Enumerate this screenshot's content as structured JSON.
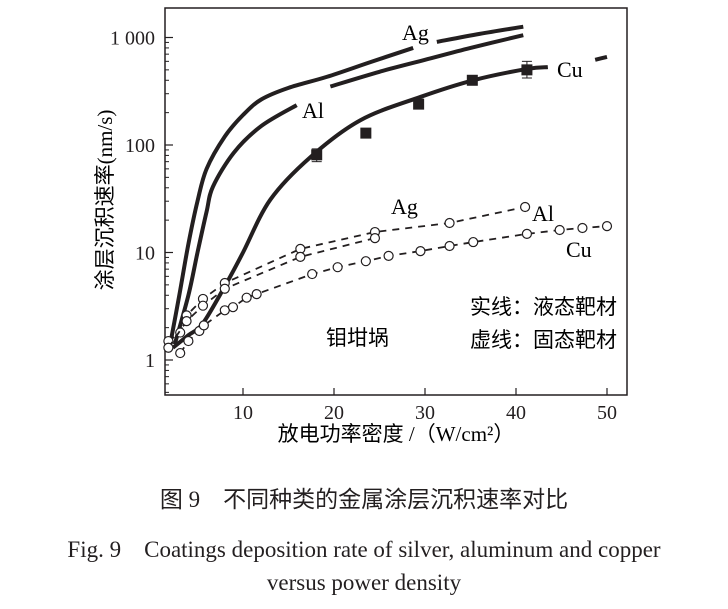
{
  "chart_data": {
    "type": "line",
    "xlabel": "放电功率密度 /（W/cm²）",
    "ylabel": "涂层沉积速率(nm/s)",
    "x_ticks": [
      "10",
      "20",
      "30",
      "40",
      "50"
    ],
    "y_ticks": [
      "1",
      "10",
      "100",
      "1 000"
    ],
    "xlim": [
      1.4,
      52
    ],
    "ylim": [
      0.48,
      1800
    ],
    "y_scale": "log",
    "grid": false,
    "color": "#231f20",
    "series": [
      {
        "name": "Ag",
        "style": "solid",
        "marker": "none",
        "segments": [
          [
            [
              2,
              1.4
            ],
            [
              3,
              4
            ],
            [
              4,
              12
            ],
            [
              5,
              30
            ],
            [
              6,
              60
            ],
            [
              8,
              120
            ],
            [
              10,
              190
            ],
            [
              12,
              265
            ],
            [
              15,
              340
            ],
            [
              19.2,
              430
            ],
            [
              24,
              590
            ],
            [
              28.7,
              800
            ]
          ],
          [
            [
              31.3,
              910
            ],
            [
              36,
              1080
            ],
            [
              40.8,
              1260
            ]
          ]
        ]
      },
      {
        "name": "Al",
        "style": "solid",
        "marker": "none",
        "segments": [
          [
            [
              2.5,
              1.4
            ],
            [
              4,
              4
            ],
            [
              5,
              10
            ],
            [
              6,
              24
            ],
            [
              6.7,
              41
            ],
            [
              9,
              85
            ],
            [
              12,
              150
            ],
            [
              15.9,
              235
            ]
          ],
          [
            [
              19.6,
              350
            ],
            [
              25,
              480
            ],
            [
              30,
              620
            ],
            [
              35,
              800
            ],
            [
              40.8,
              1050
            ]
          ]
        ]
      },
      {
        "name": "Cu",
        "style": "solid",
        "marker": "none",
        "segments": [
          [
            [
              2.3,
              1.3
            ],
            [
              4,
              1.7
            ],
            [
              5.6,
              2.2
            ],
            [
              8.2,
              5.2
            ],
            [
              10,
              10
            ],
            [
              13,
              31
            ],
            [
              17.4,
              77
            ],
            [
              22.9,
              170
            ],
            [
              29.5,
              280
            ],
            [
              35.3,
              400
            ],
            [
              41.2,
              510
            ],
            [
              43.5,
              530
            ]
          ],
          [
            [
              48.7,
              620
            ],
            [
              50,
              660
            ]
          ]
        ]
      },
      {
        "name": "Cu",
        "style": "solid",
        "marker": "square",
        "points": [
          [
            18.1,
            81
          ],
          [
            23.5,
            129
          ],
          [
            29.3,
            240
          ],
          [
            35.2,
            400
          ],
          [
            41.2,
            500
          ]
        ],
        "error_bars": [
          [
            18.1,
            70,
            92
          ],
          [
            41.2,
            420,
            600
          ]
        ]
      },
      {
        "name": "Ag",
        "style": "dashed",
        "marker": "circle",
        "points": [
          [
            1.8,
            1.5
          ],
          [
            3.1,
            1.8
          ],
          [
            3.8,
            2.6
          ],
          [
            5.6,
            3.7
          ],
          [
            8,
            5.2
          ],
          [
            16.3,
            10.8
          ],
          [
            24.5,
            15.5
          ],
          [
            32.7,
            18.8
          ],
          [
            41,
            26.5
          ]
        ]
      },
      {
        "name": "Al",
        "style": "dashed",
        "marker": "circle",
        "points": [
          [
            1.8,
            1.3
          ],
          [
            3.8,
            2.3
          ],
          [
            5.6,
            3.2
          ],
          [
            8,
            4.6
          ],
          [
            16.3,
            9.1
          ],
          [
            24.5,
            13.6
          ]
        ]
      },
      {
        "name": "Cu",
        "style": "dashed",
        "marker": "circle",
        "points": [
          [
            3.1,
            1.16
          ],
          [
            4,
            1.5
          ],
          [
            5.2,
            1.86
          ],
          [
            5.7,
            2.1
          ],
          [
            8,
            2.9
          ],
          [
            8.9,
            3.1
          ],
          [
            10.4,
            3.8
          ],
          [
            11.5,
            4.1
          ],
          [
            17.6,
            6.3
          ],
          [
            20.4,
            7.3
          ],
          [
            23.5,
            8.3
          ],
          [
            26,
            9.3
          ],
          [
            29.5,
            10.3
          ],
          [
            32.7,
            11.5
          ],
          [
            35.3,
            12.5
          ],
          [
            41.2,
            14.9
          ],
          [
            44.8,
            16.2
          ],
          [
            47.3,
            16.9
          ],
          [
            50,
            17.6
          ]
        ]
      }
    ],
    "annotations": [
      "Ag",
      "Al",
      "Cu",
      "Ag",
      "Al",
      "Cu",
      "钼坩埚",
      "实线：液态靶材",
      "虚线：固态靶材"
    ]
  },
  "caption": {
    "zh": "图 9　不同种类的金属涂层沉积速率对比",
    "en_line1": "Fig. 9　Coatings deposition rate of silver, aluminum and copper",
    "en_line2": "versus power density"
  }
}
